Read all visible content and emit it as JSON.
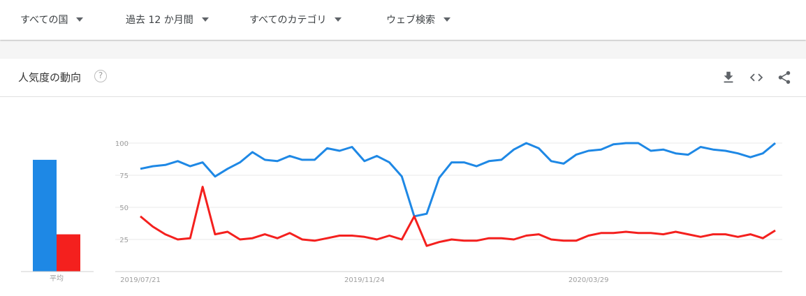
{
  "filters": [
    {
      "label": "すべての国"
    },
    {
      "label": "過去 12 か月間"
    },
    {
      "label": "すべてのカテゴリ"
    },
    {
      "label": "ウェブ検索"
    }
  ],
  "card": {
    "title": "人気度の動向",
    "help_icon": "help-icon",
    "actions": [
      "download-icon",
      "embed-code-icon",
      "share-icon"
    ]
  },
  "colors": {
    "series1": "#1e88e5",
    "series2": "#f4201e"
  },
  "chart_data": {
    "type": "line",
    "y_ticks": [
      100,
      75,
      50,
      25
    ],
    "ylim": [
      0,
      100
    ],
    "x_tick_labels": [
      "2019/07/21",
      "2019/11/24",
      "2020/03/29"
    ],
    "x_tick_indices": [
      0,
      18,
      36
    ],
    "grid": true,
    "average_label": "平均",
    "series": [
      {
        "color": "#1e88e5",
        "average": 87,
        "values": [
          80,
          82,
          83,
          86,
          82,
          85,
          74,
          80,
          85,
          93,
          87,
          86,
          90,
          87,
          87,
          96,
          94,
          97,
          86,
          90,
          85,
          74,
          43,
          45,
          73,
          85,
          85,
          82,
          86,
          87,
          95,
          100,
          96,
          86,
          84,
          91,
          94,
          95,
          99,
          100,
          100,
          94,
          95,
          92,
          91,
          97,
          95,
          94,
          92,
          89,
          92,
          100
        ]
      },
      {
        "color": "#f4201e",
        "average": 29,
        "values": [
          43,
          35,
          29,
          25,
          26,
          66,
          29,
          31,
          25,
          26,
          29,
          26,
          30,
          25,
          24,
          26,
          28,
          28,
          27,
          25,
          28,
          25,
          43,
          20,
          23,
          25,
          24,
          24,
          26,
          26,
          25,
          28,
          29,
          25,
          24,
          24,
          28,
          30,
          30,
          31,
          30,
          30,
          29,
          31,
          29,
          27,
          29,
          29,
          27,
          29,
          26,
          32
        ]
      }
    ]
  }
}
